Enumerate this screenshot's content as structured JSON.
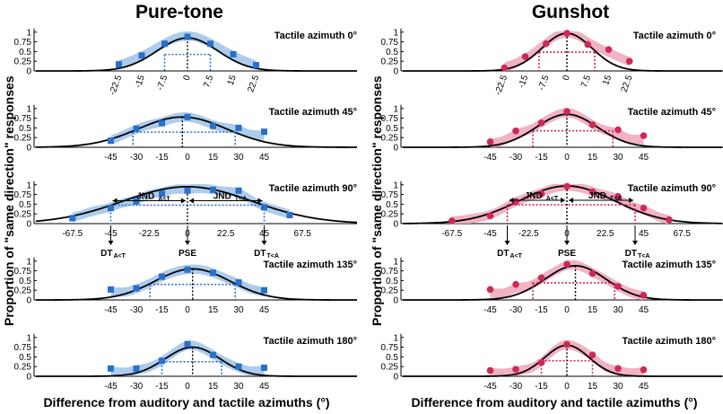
{
  "chart_data": [
    {
      "type": "line",
      "title": "Pure-tone",
      "xlabel": "Difference from auditory and tactile azimuths (°)",
      "ylabel": "Proportion of \"same direction\" responses",
      "color": "#2a6fc8",
      "band_color": "#9fc3ea",
      "marker": "square",
      "yticks": [
        "0",
        "0.25",
        "0.5",
        "0.75",
        "1"
      ],
      "ylim": [
        0,
        1
      ],
      "panels": [
        {
          "label": "Tactile azimuth 0°",
          "xticks": [
            "-22.5",
            "-15",
            "-7.5",
            "0",
            "7.5",
            "15",
            "22.5"
          ],
          "x": [
            -22.5,
            -15,
            -7.5,
            0,
            7.5,
            15,
            22.5
          ],
          "y": [
            0.17,
            0.4,
            0.7,
            0.88,
            0.7,
            0.43,
            0.15
          ],
          "pse": 0,
          "dt": [
            -7.5,
            7.5
          ],
          "fit_sigma": 10,
          "fit_peak": 0.85
        },
        {
          "label": "Tactile azimuth 45°",
          "xticks": [
            "-45",
            "-30",
            "-15",
            "0",
            "15",
            "30",
            "45"
          ],
          "x": [
            -45,
            -30,
            -15,
            0,
            15,
            30,
            45
          ],
          "y": [
            0.17,
            0.48,
            0.62,
            0.78,
            0.55,
            0.5,
            0.4
          ],
          "pse": -3,
          "dt": [
            -32,
            28
          ],
          "fit_sigma": 26,
          "fit_peak": 0.78
        },
        {
          "label": "Tactile azimuth 90°",
          "xticks": [
            "-67.5",
            "-45",
            "-22.5",
            "0",
            "22.5",
            "45",
            "67.5"
          ],
          "x": [
            -67.5,
            -45,
            -30,
            -15,
            0,
            15,
            30,
            45,
            60
          ],
          "y": [
            0.14,
            0.4,
            0.57,
            0.77,
            0.85,
            0.87,
            0.85,
            0.42,
            0.22
          ],
          "pse": 0,
          "dt": [
            -45,
            45
          ],
          "fit_sigma": 38,
          "fit_peak": 0.95,
          "annotations": [
            "JND",
            "JND",
            "A<T",
            "T<A",
            "DT",
            "DT",
            "A<T",
            "T<A",
            "PSE"
          ]
        },
        {
          "label": "Tactile azimuth 135°",
          "xticks": [
            "-45",
            "-30",
            "-15",
            "0",
            "15",
            "30",
            "45"
          ],
          "x": [
            -45,
            -30,
            -15,
            0,
            15,
            30,
            45
          ],
          "y": [
            0.27,
            0.3,
            0.6,
            0.78,
            0.7,
            0.45,
            0.25
          ],
          "pse": 3,
          "dt": [
            -22,
            28
          ],
          "fit_sigma": 22,
          "fit_peak": 0.8
        },
        {
          "label": "Tactile azimuth 180°",
          "xticks": [
            "-45",
            "-30",
            "-15",
            "0",
            "15",
            "30",
            "45"
          ],
          "x": [
            -45,
            -30,
            -15,
            0,
            15,
            30,
            45
          ],
          "y": [
            0.2,
            0.2,
            0.4,
            0.83,
            0.55,
            0.25,
            0.22
          ],
          "pse": 3,
          "dt": [
            -15,
            20
          ],
          "fit_sigma": 16,
          "fit_peak": 0.75
        }
      ]
    },
    {
      "type": "line",
      "title": "Gunshot",
      "xlabel": "Difference from auditory and tactile azimuths (°)",
      "ylabel": "Proportion of \"same direction\" responses",
      "color": "#cc2a56",
      "band_color": "#eea4b8",
      "marker": "circle",
      "yticks": [
        "0",
        "0.25",
        "0.5",
        "0.75",
        "1"
      ],
      "ylim": [
        0,
        1
      ],
      "panels": [
        {
          "label": "Tactile azimuth 0°",
          "xticks": [
            "-22.5",
            "-15",
            "-7.5",
            "0",
            "7.5",
            "15",
            "22.5"
          ],
          "x": [
            -22.5,
            -15,
            -7.5,
            0,
            7.5,
            15,
            22.5
          ],
          "y": [
            0.08,
            0.37,
            0.7,
            0.97,
            0.68,
            0.55,
            0.25
          ],
          "pse": 0,
          "dt": [
            -10,
            10
          ],
          "fit_sigma": 9,
          "fit_peak": 0.97
        },
        {
          "label": "Tactile azimuth 45°",
          "xticks": [
            "-45",
            "-30",
            "-15",
            "0",
            "15",
            "30",
            "45"
          ],
          "x": [
            -45,
            -30,
            -15,
            0,
            15,
            30,
            45
          ],
          "y": [
            0.14,
            0.42,
            0.63,
            0.92,
            0.58,
            0.45,
            0.3
          ],
          "pse": 0,
          "dt": [
            -20,
            27
          ],
          "fit_sigma": 18,
          "fit_peak": 0.85
        },
        {
          "label": "Tactile azimuth 90°",
          "xticks": [
            "-67.5",
            "-45",
            "-22.5",
            "0",
            "22.5",
            "45",
            "67.5"
          ],
          "x": [
            -67.5,
            -45,
            -30,
            -15,
            0,
            15,
            30,
            45,
            60
          ],
          "y": [
            0.07,
            0.2,
            0.57,
            0.77,
            0.96,
            0.82,
            0.7,
            0.4,
            0.1
          ],
          "pse": 0,
          "dt": [
            -35,
            40
          ],
          "fit_sigma": 28,
          "fit_peak": 0.97,
          "annotations": [
            "JND",
            "JND",
            "A<T",
            "T<A",
            "DT",
            "DT",
            "A<T",
            "T<A",
            "PSE"
          ]
        },
        {
          "label": "Tactile azimuth 135°",
          "xticks": [
            "-45",
            "-30",
            "-15",
            "0",
            "15",
            "30",
            "45"
          ],
          "x": [
            -45,
            -30,
            -15,
            0,
            15,
            30,
            45
          ],
          "y": [
            0.27,
            0.4,
            0.57,
            0.92,
            0.68,
            0.35,
            0.12
          ],
          "pse": 5,
          "dt": [
            -20,
            28
          ],
          "fit_sigma": 18,
          "fit_peak": 0.88
        },
        {
          "label": "Tactile azimuth 180°",
          "xticks": [
            "-45",
            "-30",
            "-15",
            "0",
            "15",
            "30",
            "45"
          ],
          "x": [
            -45,
            -30,
            -15,
            0,
            15,
            30,
            45
          ],
          "y": [
            0.15,
            0.18,
            0.35,
            0.82,
            0.55,
            0.2,
            0.17
          ],
          "pse": 0,
          "dt": [
            -15,
            15
          ],
          "fit_sigma": 13,
          "fit_peak": 0.8
        }
      ]
    }
  ]
}
